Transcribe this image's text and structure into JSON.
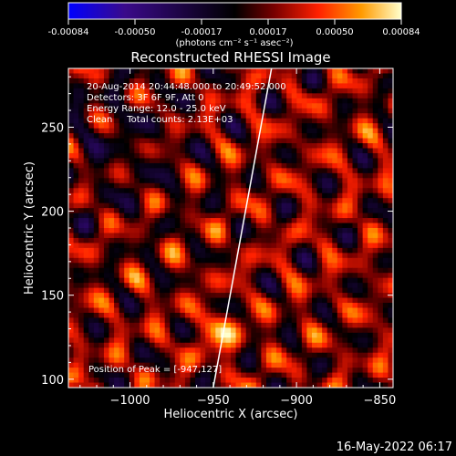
{
  "colorbar": {
    "tick_labels": [
      "-0.00084",
      "-0.00050",
      "-0.00017",
      "0.00017",
      "0.00050",
      "0.00084"
    ],
    "unit_label": "(photons cm⁻² s⁻¹ asec⁻²)",
    "colors": [
      "#0000ff",
      "#3a0a8a",
      "#000000",
      "#7a0000",
      "#ff2000",
      "#ff9a00",
      "#ffffcc"
    ]
  },
  "chart_data": {
    "type": "heatmap",
    "title": "Reconstructed RHESSI Image",
    "xlabel": "Heliocentric X (arcsec)",
    "ylabel": "Heliocentric Y (arcsec)",
    "xlim": [
      -1037,
      -842
    ],
    "ylim": [
      95,
      285
    ],
    "x_ticks": [
      -1000,
      -950,
      -900,
      -850
    ],
    "x_tick_labels": [
      "−1000",
      "−950",
      "−900",
      "−850"
    ],
    "y_ticks": [
      100,
      150,
      200,
      250
    ],
    "y_tick_labels": [
      "100",
      "150",
      "200",
      "250"
    ],
    "value_range": [
      -0.00084,
      0.00084
    ],
    "peak_position": [
      -947,
      127
    ],
    "limb_line": [
      [
        -950,
        95
      ],
      [
        -915,
        285
      ]
    ],
    "annotations": [
      "20-Aug-2014 20:44:48.000 to 20:49:52.000",
      "Detectors: 3F 6F 9F, Att 0",
      "Energy Range: 12.0 - 25.0 keV",
      "Clean     Total counts: 2.13E+03"
    ],
    "peak_label": "Position of Peak = [-947,127]"
  },
  "footer": {
    "date": "16-May-2022 06:17"
  }
}
